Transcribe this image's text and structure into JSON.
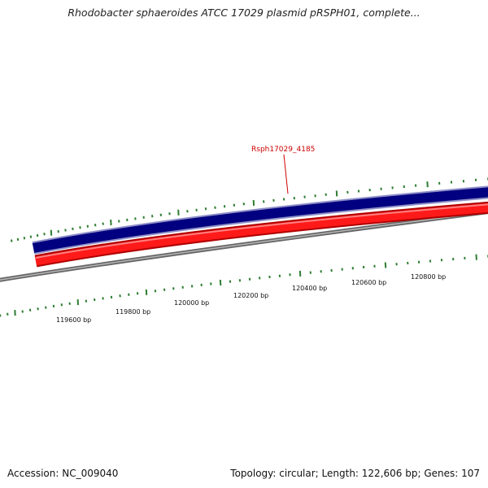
{
  "header": {
    "title": "Rhodobacter sphaeroides ATCC 17029 plasmid pRSPH01, complete..."
  },
  "footer": {
    "accession": "Accession: NC_009040",
    "summary": "Topology: circular; Length: 122,606 bp; Genes: 107"
  },
  "map": {
    "ruler_labels": [
      "119600 bp",
      "119800 bp",
      "120000 bp",
      "120200 bp",
      "120400 bp",
      "120600 bp",
      "120800 bp"
    ],
    "gene_label": "Rsph17029_4185",
    "colors": {
      "forward_strand": "#000080",
      "reverse_strand": "#ff0000",
      "backbone": "#808080",
      "ticks": "#2e7d32",
      "gene_label": "#cc0000"
    }
  }
}
